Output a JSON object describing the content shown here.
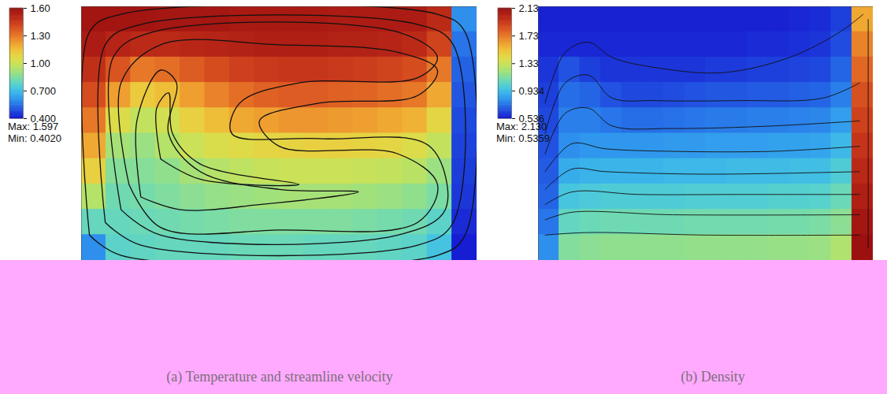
{
  "chart_data": [
    {
      "type": "heatmap",
      "title": "(a) Temperature and streamline velocity",
      "xlim": [
        0,
        1
      ],
      "ylim": [
        0,
        1
      ],
      "cells": [
        [
          1.58,
          1.58,
          1.58,
          1.57,
          1.57,
          1.57,
          1.56,
          1.56,
          1.56,
          1.56,
          1.55,
          1.55,
          1.55,
          1.55,
          1.5,
          0.6
        ],
        [
          1.55,
          1.52,
          1.5,
          1.5,
          1.51,
          1.52,
          1.53,
          1.54,
          1.54,
          1.54,
          1.53,
          1.53,
          1.52,
          1.5,
          1.42,
          0.55
        ],
        [
          1.48,
          1.38,
          1.3,
          1.32,
          1.36,
          1.4,
          1.43,
          1.45,
          1.46,
          1.46,
          1.45,
          1.44,
          1.42,
          1.4,
          1.3,
          0.52
        ],
        [
          1.4,
          1.22,
          1.12,
          1.15,
          1.22,
          1.28,
          1.32,
          1.35,
          1.36,
          1.36,
          1.35,
          1.34,
          1.32,
          1.3,
          1.2,
          0.5
        ],
        [
          1.3,
          1.05,
          0.98,
          1.02,
          1.1,
          1.15,
          1.2,
          1.22,
          1.24,
          1.24,
          1.23,
          1.22,
          1.2,
          1.18,
          1.08,
          0.48
        ],
        [
          1.2,
          0.92,
          0.9,
          0.95,
          1.0,
          1.04,
          1.06,
          1.08,
          1.09,
          1.1,
          1.1,
          1.09,
          1.08,
          1.05,
          0.98,
          0.47
        ],
        [
          1.1,
          0.86,
          0.86,
          0.88,
          0.92,
          0.95,
          0.97,
          0.99,
          1.0,
          1.0,
          1.0,
          0.99,
          0.98,
          0.96,
          0.9,
          0.46
        ],
        [
          0.95,
          0.82,
          0.83,
          0.85,
          0.87,
          0.89,
          0.9,
          0.91,
          0.92,
          0.92,
          0.92,
          0.91,
          0.9,
          0.88,
          0.84,
          0.45
        ],
        [
          0.8,
          0.8,
          0.81,
          0.82,
          0.83,
          0.84,
          0.85,
          0.85,
          0.85,
          0.85,
          0.85,
          0.84,
          0.83,
          0.82,
          0.78,
          0.43
        ],
        [
          0.6,
          0.78,
          0.79,
          0.8,
          0.8,
          0.8,
          0.81,
          0.81,
          0.81,
          0.8,
          0.8,
          0.8,
          0.79,
          0.78,
          0.72,
          0.41
        ]
      ],
      "colorbar": {
        "range": [
          0.4,
          1.6
        ],
        "ticks": [
          {
            "value": 1.6,
            "label": "1.60"
          },
          {
            "value": 1.3,
            "label": "1.30"
          },
          {
            "value": 1.0,
            "label": "1.00"
          },
          {
            "value": 0.7,
            "label": "0.700"
          },
          {
            "value": 0.4,
            "label": "0.400"
          }
        ],
        "max_label": "Max: 1.597",
        "min_label": "Min: 0.4020"
      },
      "lines": [
        [
          [
            0.02,
            0.1
          ],
          [
            0.02,
            0.9
          ],
          [
            0.1,
            0.97
          ],
          [
            0.9,
            0.97
          ],
          [
            0.97,
            0.9
          ],
          [
            0.97,
            0.1
          ],
          [
            0.9,
            0.02
          ],
          [
            0.1,
            0.02
          ],
          [
            0.02,
            0.1
          ]
        ],
        [
          [
            0.06,
            0.15
          ],
          [
            0.06,
            0.85
          ],
          [
            0.15,
            0.93
          ],
          [
            0.85,
            0.93
          ],
          [
            0.94,
            0.85
          ],
          [
            0.94,
            0.15
          ],
          [
            0.85,
            0.06
          ],
          [
            0.15,
            0.06
          ],
          [
            0.06,
            0.15
          ]
        ],
        [
          [
            0.1,
            0.2
          ],
          [
            0.08,
            0.8
          ],
          [
            0.18,
            0.9
          ],
          [
            0.8,
            0.9
          ],
          [
            0.9,
            0.8
          ],
          [
            0.85,
            0.72
          ],
          [
            0.55,
            0.7
          ],
          [
            0.4,
            0.62
          ],
          [
            0.38,
            0.5
          ],
          [
            0.6,
            0.48
          ],
          [
            0.88,
            0.45
          ],
          [
            0.92,
            0.2
          ],
          [
            0.8,
            0.1
          ],
          [
            0.2,
            0.1
          ],
          [
            0.1,
            0.2
          ]
        ],
        [
          [
            0.12,
            0.3
          ],
          [
            0.1,
            0.7
          ],
          [
            0.2,
            0.85
          ],
          [
            0.5,
            0.85
          ],
          [
            0.8,
            0.82
          ],
          [
            0.9,
            0.75
          ],
          [
            0.85,
            0.65
          ],
          [
            0.6,
            0.62
          ],
          [
            0.45,
            0.55
          ],
          [
            0.5,
            0.45
          ],
          [
            0.8,
            0.42
          ],
          [
            0.9,
            0.3
          ],
          [
            0.85,
            0.15
          ],
          [
            0.5,
            0.12
          ],
          [
            0.2,
            0.13
          ],
          [
            0.12,
            0.3
          ]
        ],
        [
          [
            0.15,
            0.25
          ],
          [
            0.14,
            0.55
          ],
          [
            0.2,
            0.75
          ],
          [
            0.24,
            0.7
          ],
          [
            0.22,
            0.5
          ],
          [
            0.3,
            0.35
          ],
          [
            0.5,
            0.28
          ],
          [
            0.7,
            0.27
          ],
          [
            0.45,
            0.22
          ],
          [
            0.25,
            0.2
          ],
          [
            0.15,
            0.25
          ]
        ],
        [
          [
            0.2,
            0.4
          ],
          [
            0.19,
            0.6
          ],
          [
            0.22,
            0.66
          ],
          [
            0.23,
            0.5
          ],
          [
            0.3,
            0.38
          ],
          [
            0.55,
            0.3
          ],
          [
            0.3,
            0.32
          ],
          [
            0.2,
            0.4
          ]
        ]
      ]
    },
    {
      "type": "heatmap",
      "title": "(b) Density",
      "xlim": [
        0,
        1
      ],
      "ylim": [
        0,
        1
      ],
      "cells": [
        [
          0.56,
          0.56,
          0.56,
          0.56,
          0.56,
          0.56,
          0.56,
          0.56,
          0.56,
          0.56,
          0.56,
          0.56,
          0.57,
          0.58,
          0.62,
          1.6
        ],
        [
          0.57,
          0.57,
          0.57,
          0.57,
          0.57,
          0.57,
          0.57,
          0.57,
          0.57,
          0.57,
          0.58,
          0.58,
          0.59,
          0.6,
          0.65,
          1.7
        ],
        [
          0.6,
          0.66,
          0.62,
          0.6,
          0.6,
          0.6,
          0.6,
          0.6,
          0.61,
          0.61,
          0.62,
          0.62,
          0.63,
          0.64,
          0.7,
          1.78
        ],
        [
          0.62,
          0.72,
          0.7,
          0.66,
          0.64,
          0.64,
          0.65,
          0.66,
          0.67,
          0.67,
          0.68,
          0.68,
          0.69,
          0.7,
          0.76,
          1.85
        ],
        [
          0.64,
          0.76,
          0.76,
          0.74,
          0.72,
          0.72,
          0.73,
          0.74,
          0.75,
          0.75,
          0.76,
          0.76,
          0.77,
          0.78,
          0.84,
          1.9
        ],
        [
          0.66,
          0.8,
          0.82,
          0.82,
          0.82,
          0.82,
          0.83,
          0.83,
          0.84,
          0.84,
          0.84,
          0.85,
          0.85,
          0.86,
          0.92,
          1.95
        ],
        [
          0.68,
          0.88,
          0.9,
          0.91,
          0.91,
          0.91,
          0.92,
          0.92,
          0.92,
          0.93,
          0.93,
          0.93,
          0.94,
          0.94,
          1.0,
          2.0
        ],
        [
          0.7,
          0.97,
          0.99,
          1.0,
          1.0,
          1.0,
          1.0,
          1.01,
          1.01,
          1.01,
          1.01,
          1.02,
          1.02,
          1.03,
          1.08,
          2.05
        ],
        [
          0.74,
          1.06,
          1.08,
          1.09,
          1.09,
          1.09,
          1.09,
          1.1,
          1.1,
          1.1,
          1.1,
          1.11,
          1.11,
          1.12,
          1.16,
          2.1
        ],
        [
          0.8,
          1.14,
          1.16,
          1.17,
          1.17,
          1.17,
          1.17,
          1.18,
          1.18,
          1.18,
          1.18,
          1.19,
          1.19,
          1.2,
          1.25,
          2.13
        ]
      ],
      "colorbar": {
        "range": [
          0.536,
          2.13
        ],
        "ticks": [
          2.13,
          1.73,
          1.33,
          0.934,
          0.536
        ],
        "max_label": "Max: 2.130",
        "min_label": "Min: 0.5359"
      },
      "lines": [
        [
          [
            0.02,
            0.62
          ],
          [
            0.08,
            0.82
          ],
          [
            0.15,
            0.86
          ],
          [
            0.22,
            0.8
          ],
          [
            0.35,
            0.76
          ],
          [
            0.55,
            0.74
          ],
          [
            0.75,
            0.8
          ],
          [
            0.9,
            0.9
          ],
          [
            0.97,
            0.97
          ]
        ],
        [
          [
            0.02,
            0.5
          ],
          [
            0.08,
            0.7
          ],
          [
            0.15,
            0.73
          ],
          [
            0.22,
            0.64
          ],
          [
            0.35,
            0.63
          ],
          [
            0.6,
            0.63
          ],
          [
            0.85,
            0.64
          ],
          [
            0.96,
            0.7
          ]
        ],
        [
          [
            0.02,
            0.42
          ],
          [
            0.08,
            0.58
          ],
          [
            0.15,
            0.6
          ],
          [
            0.22,
            0.53
          ],
          [
            0.4,
            0.52
          ],
          [
            0.7,
            0.53
          ],
          [
            0.96,
            0.55
          ]
        ],
        [
          [
            0.02,
            0.35
          ],
          [
            0.1,
            0.46
          ],
          [
            0.2,
            0.44
          ],
          [
            0.4,
            0.43
          ],
          [
            0.7,
            0.43
          ],
          [
            0.96,
            0.45
          ]
        ],
        [
          [
            0.02,
            0.28
          ],
          [
            0.1,
            0.36
          ],
          [
            0.2,
            0.35
          ],
          [
            0.5,
            0.34
          ],
          [
            0.96,
            0.35
          ]
        ],
        [
          [
            0.02,
            0.22
          ],
          [
            0.1,
            0.27
          ],
          [
            0.3,
            0.26
          ],
          [
            0.6,
            0.26
          ],
          [
            0.96,
            0.26
          ]
        ],
        [
          [
            0.02,
            0.16
          ],
          [
            0.1,
            0.19
          ],
          [
            0.4,
            0.18
          ],
          [
            0.96,
            0.18
          ]
        ],
        [
          [
            0.02,
            0.1
          ],
          [
            0.15,
            0.11
          ],
          [
            0.5,
            0.1
          ],
          [
            0.96,
            0.1
          ]
        ],
        [
          [
            0.985,
            0.05
          ],
          [
            0.985,
            0.95
          ]
        ]
      ]
    }
  ]
}
